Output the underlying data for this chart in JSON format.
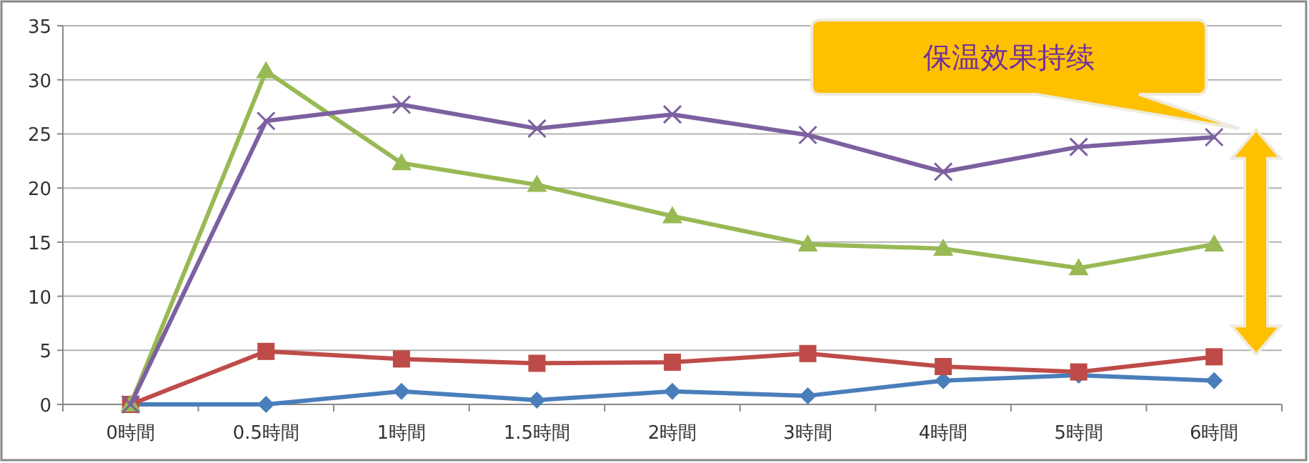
{
  "chart_data": {
    "type": "line",
    "categories": [
      "0時間",
      "0.5時間",
      "1時間",
      "1.5時間",
      "2時間",
      "3時間",
      "4時間",
      "5時間",
      "6時間"
    ],
    "series": [
      {
        "color": "#4a7ebb",
        "marker": "diamond",
        "values": [
          0,
          0,
          1.2,
          0.4,
          1.2,
          0.8,
          2.2,
          2.7,
          2.2
        ]
      },
      {
        "color": "#be4b48",
        "marker": "square",
        "values": [
          0,
          4.9,
          4.2,
          3.8,
          3.9,
          4.7,
          3.5,
          3.0,
          4.4
        ]
      },
      {
        "color": "#98b954",
        "marker": "triangle",
        "values": [
          0,
          30.8,
          22.3,
          20.3,
          17.4,
          14.8,
          14.4,
          12.6,
          14.8
        ]
      },
      {
        "color": "#7d60a0",
        "marker": "cross",
        "values": [
          0,
          26.2,
          27.7,
          25.5,
          26.8,
          24.9,
          21.5,
          23.8,
          24.7
        ]
      }
    ],
    "ylim": [
      0,
      35
    ],
    "yticks": [
      0,
      5,
      10,
      15,
      20,
      25,
      30,
      35
    ],
    "grid": "y",
    "line_style": "solid",
    "annotations": [
      "保温效果持续"
    ]
  }
}
